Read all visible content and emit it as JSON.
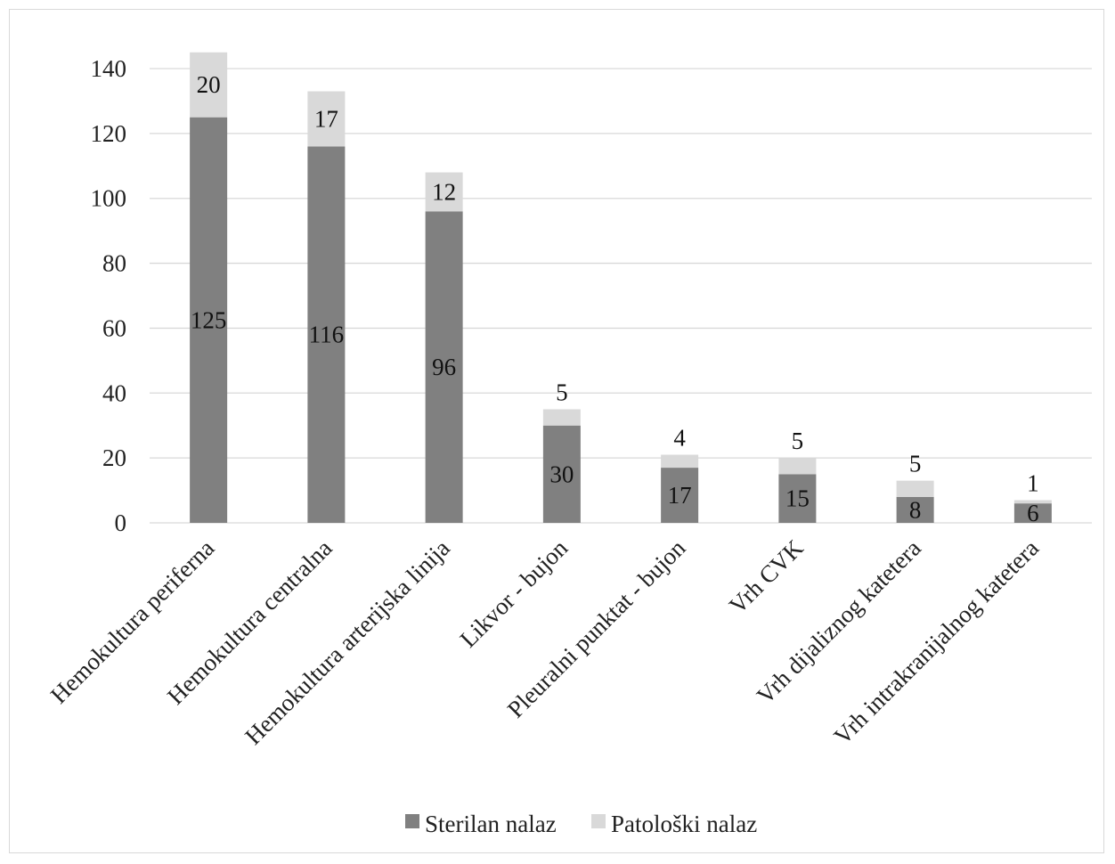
{
  "chart_data": {
    "type": "bar",
    "stacked": true,
    "categories": [
      "Hemokultura periferna",
      "Hemokultura centralna",
      "Hemokultura arterijska linija",
      "Likvor - bujon",
      "Pleuralni punktat - bujon",
      "Vrh CVK",
      "Vrh dijaliznog katetera",
      "Vrh intrakranijalnog katetera"
    ],
    "series": [
      {
        "name": "Sterilan nalaz",
        "values": [
          125,
          116,
          96,
          30,
          17,
          15,
          8,
          6
        ],
        "color": "#808080"
      },
      {
        "name": "Patološki nalaz",
        "values": [
          20,
          17,
          12,
          5,
          4,
          5,
          5,
          1
        ],
        "color": "#d9d9d9"
      }
    ],
    "ylim": [
      0,
      140
    ],
    "yticks": [
      0,
      20,
      40,
      60,
      80,
      100,
      120,
      140
    ],
    "grid": true,
    "legend_position": "bottom",
    "title": "",
    "xlabel": "",
    "ylabel": ""
  }
}
